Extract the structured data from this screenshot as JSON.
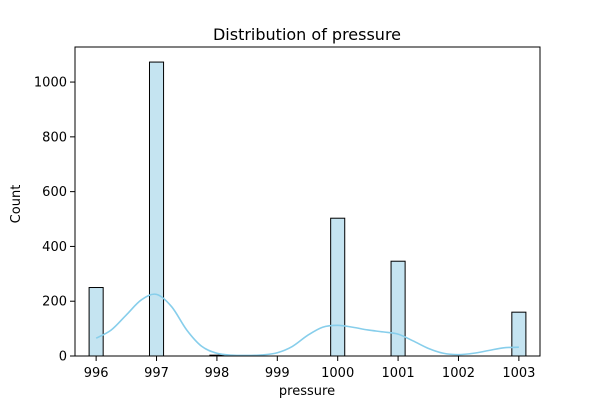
{
  "chart_data": {
    "type": "bar",
    "title": "Distribution of pressure",
    "xlabel": "pressure",
    "ylabel": "Count",
    "xlim": [
      995.65,
      1003.35
    ],
    "ylim": [
      0,
      1128
    ],
    "bar_color": "#c5e4f1",
    "bar_edge_color": "#000000",
    "kde_color": "#87ceeb",
    "grid": false,
    "legend": "none",
    "x_ticks": [
      996,
      997,
      998,
      999,
      1000,
      1001,
      1002,
      1003
    ],
    "y_ticks": [
      0,
      200,
      400,
      600,
      800,
      1000
    ],
    "bars": [
      {
        "x": 996.0,
        "value": 250
      },
      {
        "x": 997.0,
        "value": 1073
      },
      {
        "x": 998.0,
        "value": 3
      },
      {
        "x": 1000.0,
        "value": 503
      },
      {
        "x": 1001.0,
        "value": 346
      },
      {
        "x": 1003.0,
        "value": 160
      }
    ],
    "bin_width": 0.233,
    "kde": {
      "x": [
        996.0,
        996.25,
        996.5,
        996.75,
        997.0,
        997.25,
        997.5,
        997.75,
        998.0,
        998.25,
        998.5,
        998.75,
        999.0,
        999.25,
        999.5,
        999.75,
        1000.0,
        1000.25,
        1000.5,
        1000.75,
        1001.0,
        1001.25,
        1001.5,
        1001.75,
        1002.0,
        1002.25,
        1002.5,
        1002.75,
        1003.0
      ],
      "y": [
        65,
        95,
        150,
        205,
        225,
        180,
        95,
        35,
        10,
        3,
        2,
        4,
        12,
        35,
        75,
        105,
        112,
        105,
        95,
        88,
        80,
        55,
        28,
        10,
        5,
        10,
        20,
        30,
        32
      ]
    }
  }
}
